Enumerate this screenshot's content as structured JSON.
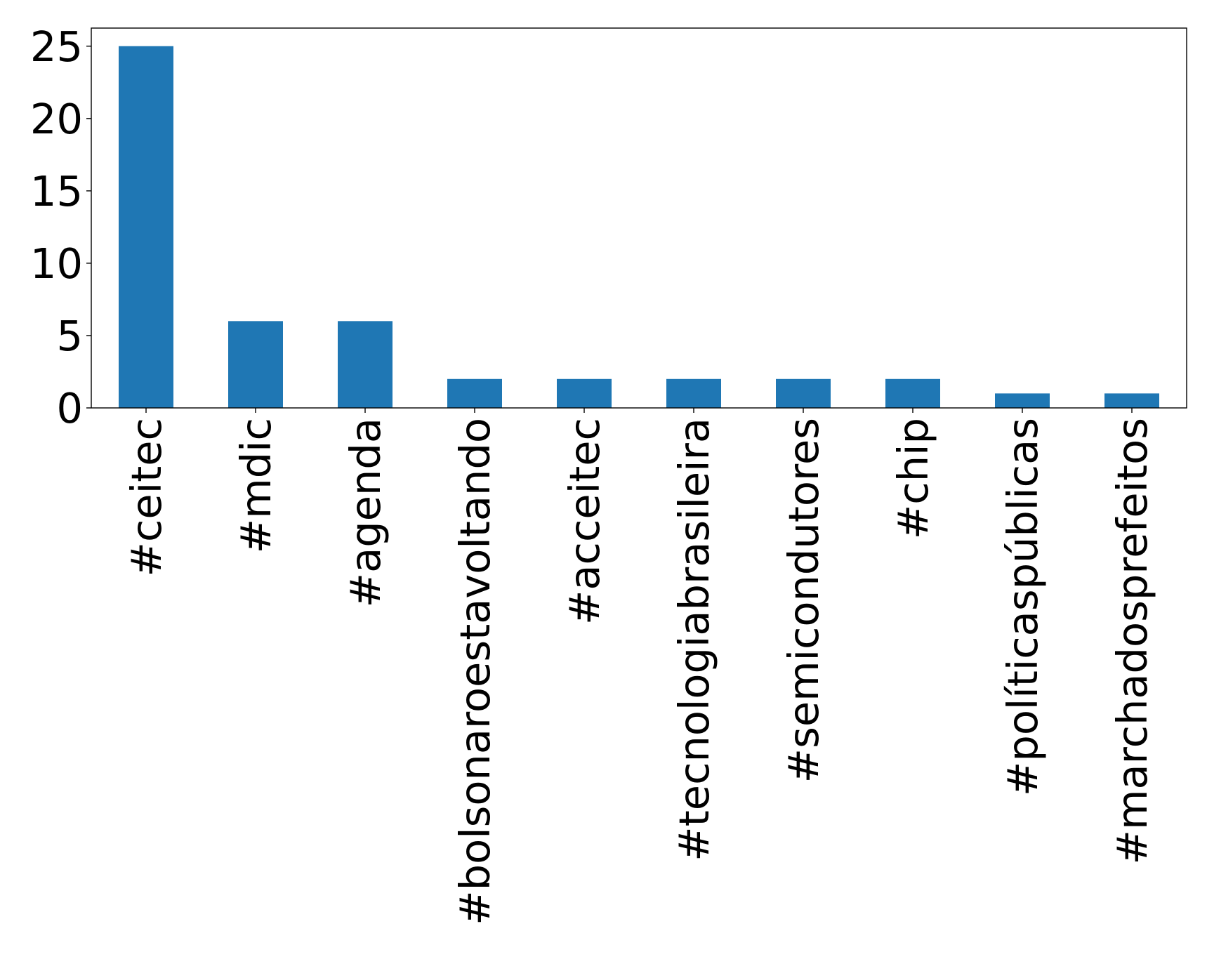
{
  "chart_data": {
    "type": "bar",
    "title": "",
    "xlabel": "",
    "ylabel": "",
    "categories": [
      "#ceitec",
      "#mdic",
      "#agenda",
      "#bolsonaroestavoltando",
      "#acceitec",
      "#tecnologiabrasileira",
      "#semicondutores",
      "#chip",
      "#políticaspúblicas",
      "#marchadosprefeitos"
    ],
    "values": [
      25,
      6,
      6,
      2,
      2,
      2,
      2,
      2,
      1,
      1
    ],
    "ylim": [
      0,
      26.25
    ],
    "yticks": [
      0,
      5,
      10,
      15,
      20,
      25
    ],
    "ytick_labels": [
      "0",
      "5",
      "10",
      "15",
      "20",
      "25"
    ],
    "bar_color": "#1f77b4",
    "grid": false,
    "legend": "none",
    "xtick_rotation": "vertical"
  }
}
